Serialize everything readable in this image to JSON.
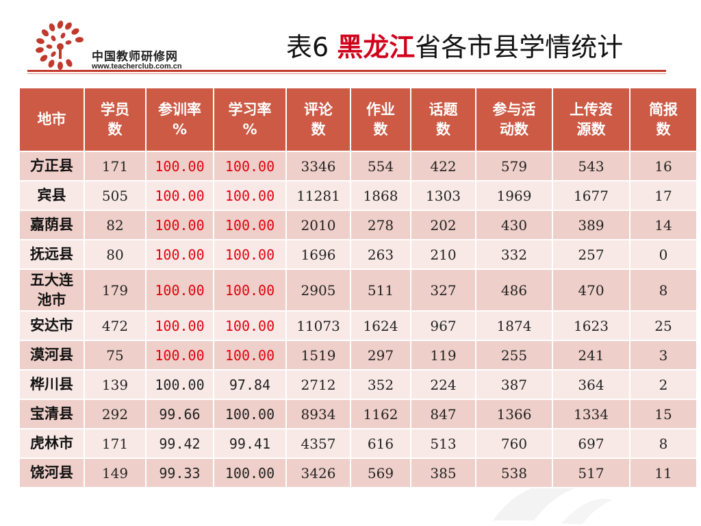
{
  "logo": {
    "name_cn": "中国教师研修网",
    "url": "www.teacherclub.com.cn"
  },
  "title": {
    "prefix": "表6  ",
    "highlight": "黑龙江",
    "suffix": "省各市县学情统计"
  },
  "colors": {
    "header_bg": "#cc5a45",
    "row_odd": "#efcfc9",
    "row_even": "#f8e9e6",
    "highlight_red": "#e3000f",
    "title_red": "#d0021b"
  },
  "table": {
    "headers": [
      "地市",
      "学员数",
      "参训率%",
      "学习率%",
      "评论数",
      "作业数",
      "话题数",
      "参与活动数",
      "上传资源数",
      "简报数"
    ],
    "header_lines": [
      [
        "地市"
      ],
      [
        "学员",
        "数"
      ],
      [
        "参训率",
        "%"
      ],
      [
        "学习率",
        "%"
      ],
      [
        "评论",
        "数"
      ],
      [
        "作业",
        "数"
      ],
      [
        "话题",
        "数"
      ],
      [
        "参与活",
        "动数"
      ],
      [
        "上传资",
        "源数"
      ],
      [
        "简报",
        "数"
      ]
    ],
    "rows": [
      {
        "city": [
          "方正县"
        ],
        "cells": [
          "171",
          "100.00",
          "100.00",
          "3346",
          "554",
          "422",
          "579",
          "543",
          "16"
        ],
        "red": [
          true,
          true
        ]
      },
      {
        "city": [
          "宾县"
        ],
        "cells": [
          "505",
          "100.00",
          "100.00",
          "11281",
          "1868",
          "1303",
          "1969",
          "1677",
          "17"
        ],
        "red": [
          true,
          true
        ]
      },
      {
        "city": [
          "嘉荫县"
        ],
        "cells": [
          "82",
          "100.00",
          "100.00",
          "2010",
          "278",
          "202",
          "430",
          "389",
          "14"
        ],
        "red": [
          true,
          true
        ]
      },
      {
        "city": [
          "抚远县"
        ],
        "cells": [
          "80",
          "100.00",
          "100.00",
          "1696",
          "263",
          "210",
          "332",
          "257",
          "0"
        ],
        "red": [
          true,
          true
        ]
      },
      {
        "city": [
          "五大连",
          "池市"
        ],
        "cells": [
          "179",
          "100.00",
          "100.00",
          "2905",
          "511",
          "327",
          "486",
          "470",
          "8"
        ],
        "red": [
          true,
          true
        ]
      },
      {
        "city": [
          "安达市"
        ],
        "cells": [
          "472",
          "100.00",
          "100.00",
          "11073",
          "1624",
          "967",
          "1874",
          "1623",
          "25"
        ],
        "red": [
          true,
          true
        ]
      },
      {
        "city": [
          "漠河县"
        ],
        "cells": [
          "75",
          "100.00",
          "100.00",
          "1519",
          "297",
          "119",
          "255",
          "241",
          "3"
        ],
        "red": [
          true,
          true
        ]
      },
      {
        "city": [
          "桦川县"
        ],
        "cells": [
          "139",
          "100.00",
          "97.84",
          "2712",
          "352",
          "224",
          "387",
          "364",
          "2"
        ],
        "red": [
          false,
          false
        ]
      },
      {
        "city": [
          "宝清县"
        ],
        "cells": [
          "292",
          "99.66",
          "100.00",
          "8934",
          "1162",
          "847",
          "1366",
          "1334",
          "15"
        ],
        "red": [
          false,
          false
        ]
      },
      {
        "city": [
          "虎林市"
        ],
        "cells": [
          "171",
          "99.42",
          "99.41",
          "4357",
          "616",
          "513",
          "760",
          "697",
          "8"
        ],
        "red": [
          false,
          false
        ]
      },
      {
        "city": [
          "饶河县"
        ],
        "cells": [
          "149",
          "99.33",
          "100.00",
          "3426",
          "569",
          "385",
          "538",
          "517",
          "11"
        ],
        "red": [
          false,
          false
        ]
      }
    ]
  }
}
